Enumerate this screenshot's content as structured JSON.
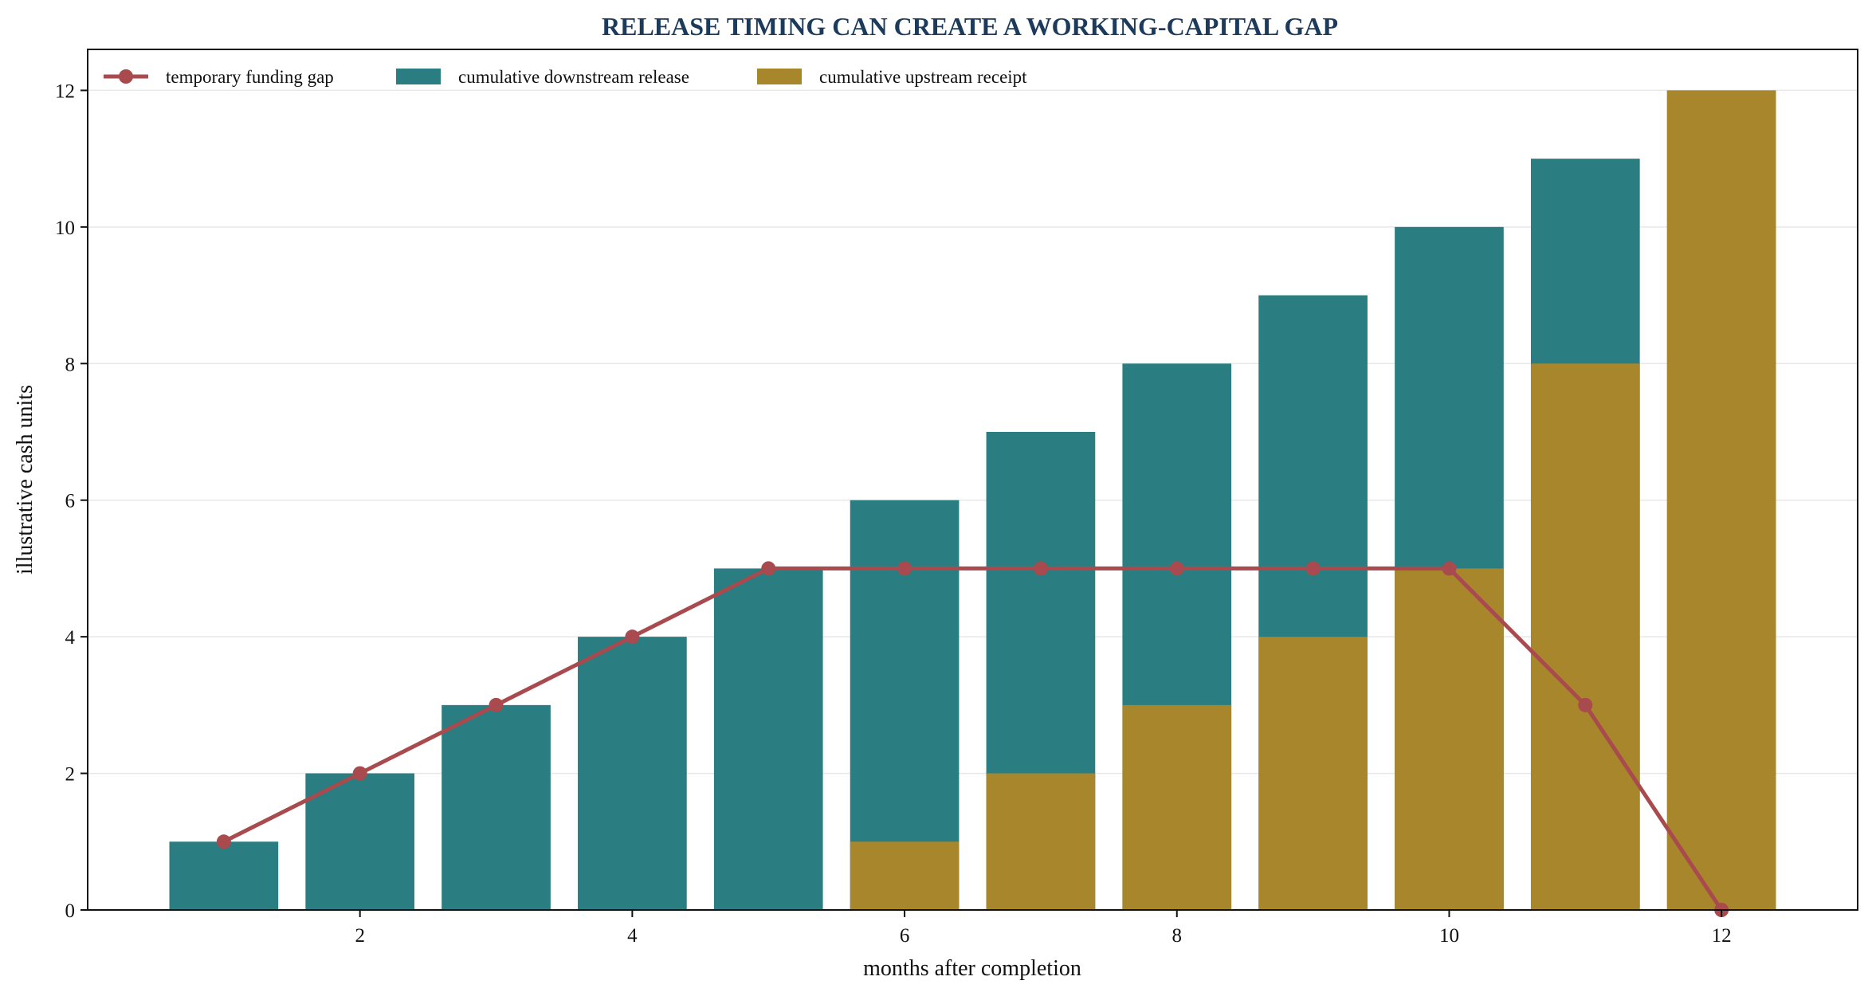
{
  "chart_data": {
    "type": "bar",
    "title": "RELEASE TIMING CAN CREATE A WORKING-CAPITAL GAP",
    "xlabel": "months after completion",
    "ylabel": "illustrative cash units",
    "x": [
      1,
      2,
      3,
      4,
      5,
      6,
      7,
      8,
      9,
      10,
      11,
      12
    ],
    "x_ticks": [
      2,
      4,
      6,
      8,
      10,
      12
    ],
    "y_ticks": [
      0,
      2,
      4,
      6,
      8,
      10,
      12
    ],
    "xlim": [
      0,
      13
    ],
    "ylim": [
      0,
      12.6
    ],
    "grid": "horizontal",
    "legend_position": "top-left",
    "series": [
      {
        "name": "cumulative downstream release",
        "kind": "bar",
        "color": "#2a7d80",
        "values": [
          1,
          2,
          3,
          4,
          5,
          6,
          7,
          8,
          9,
          10,
          11,
          12
        ]
      },
      {
        "name": "cumulative upstream receipt",
        "kind": "bar",
        "color": "#a8862b",
        "values": [
          0,
          0,
          0,
          0,
          0,
          1,
          2,
          3,
          4,
          5,
          8,
          12
        ]
      },
      {
        "name": "temporary funding gap",
        "kind": "line",
        "color": "#a84a4e",
        "values": [
          1,
          2,
          3,
          4,
          5,
          5,
          5,
          5,
          5,
          5,
          3,
          0
        ]
      }
    ],
    "legend_order": [
      "temporary funding gap",
      "cumulative downstream release",
      "cumulative upstream receipt"
    ]
  }
}
